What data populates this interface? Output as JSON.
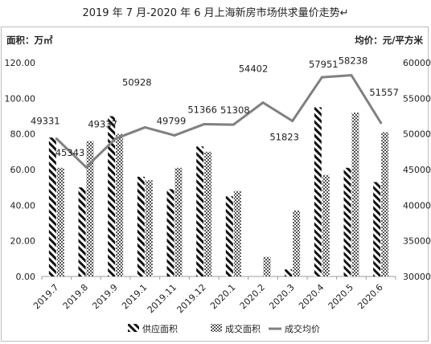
{
  "chart_data": {
    "type": "bar",
    "title": "2019 年 7 月-2020 年 6 月上海新房市场供求量价走势↵",
    "left_axis_unit": "面积：万㎡",
    "right_axis_unit": "均价：元/平方米",
    "categories": [
      "2019.7",
      "2019.8",
      "2019.9",
      "2019.1",
      "2019.11",
      "2019.12",
      "2020.1",
      "2020.2",
      "2020.3",
      "2020.4",
      "2020.5",
      "2020.6"
    ],
    "left_ylim": [
      0,
      120
    ],
    "left_ticks": [
      "0.00",
      "20.00",
      "40.00",
      "60.00",
      "80.00",
      "100.00",
      "120.00"
    ],
    "right_ylim": [
      30000,
      60000
    ],
    "right_ticks": [
      "30000",
      "35000",
      "40000",
      "45000",
      "50000",
      "55000",
      "60000"
    ],
    "series": [
      {
        "name": "供应面积",
        "type": "bar",
        "axis": "left",
        "pattern": "diagonal-stripes",
        "values": [
          78,
          50,
          90,
          56,
          49,
          73,
          45,
          0,
          4,
          95,
          61,
          53
        ]
      },
      {
        "name": "成交面积",
        "type": "bar",
        "axis": "left",
        "pattern": "checker",
        "values": [
          61,
          76,
          80,
          54,
          61,
          70,
          48,
          11,
          37,
          57,
          92,
          81
        ]
      },
      {
        "name": "成交均价",
        "type": "line",
        "axis": "right",
        "color": "#808080",
        "values": [
          49331,
          45343,
          49337,
          50928,
          49799,
          51366,
          51308,
          54402,
          51823,
          57951,
          58238,
          51557
        ],
        "labels": [
          "49331",
          "45343",
          "49337",
          "50928",
          "49799",
          "51366",
          "51308",
          "54402",
          "51823",
          "57951",
          "58238",
          "51557"
        ]
      }
    ],
    "legend_position": "bottom",
    "grid": false
  }
}
